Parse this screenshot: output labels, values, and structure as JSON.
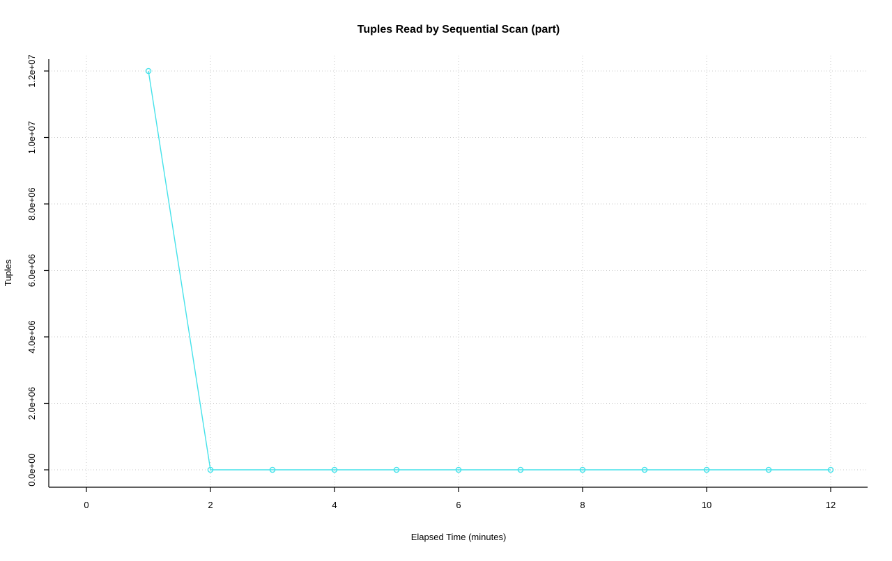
{
  "chart_data": {
    "type": "line",
    "title": "Tuples Read by Sequential Scan (part)",
    "xlabel": "Elapsed Time (minutes)",
    "ylabel": "Tuples",
    "x": [
      1,
      2,
      3,
      4,
      5,
      6,
      7,
      8,
      9,
      10,
      11,
      12
    ],
    "y": [
      12000000,
      0,
      0,
      0,
      0,
      0,
      0,
      0,
      0,
      0,
      0,
      0
    ],
    "xlim": [
      0,
      12
    ],
    "ylim": [
      0,
      12000000
    ],
    "x_ticks": [
      0,
      2,
      4,
      6,
      8,
      10,
      12
    ],
    "x_tick_labels": [
      "0",
      "2",
      "4",
      "6",
      "8",
      "10",
      "12"
    ],
    "y_ticks": [
      0,
      2000000,
      4000000,
      6000000,
      8000000,
      10000000,
      12000000
    ],
    "y_tick_labels": [
      "0.0e+00",
      "2.0e+06",
      "4.0e+06",
      "6.0e+06",
      "8.0e+06",
      "1.0e+07",
      "1.2e+07"
    ],
    "grid": true,
    "legend": "none",
    "line_color": "#45e2ea",
    "grid_color": "#c9c9c9",
    "axis_color": "#000000",
    "marker": "open-circle"
  }
}
